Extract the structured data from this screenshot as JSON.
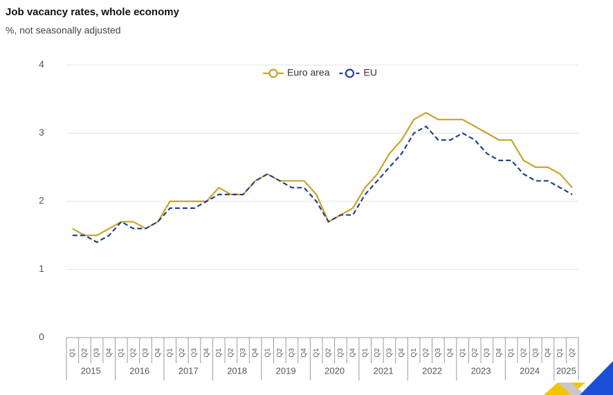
{
  "chart_data": {
    "type": "line",
    "title": "Job vacancy rates, whole economy",
    "subtitle": "%, not seasonally adjusted",
    "categories": [
      "Q1",
      "Q2",
      "Q3",
      "Q4",
      "Q1",
      "Q2",
      "Q3",
      "Q4",
      "Q1",
      "Q2",
      "Q3",
      "Q4",
      "Q1",
      "Q2",
      "Q3",
      "Q4",
      "Q1",
      "Q2",
      "Q3",
      "Q4",
      "Q1",
      "Q2",
      "Q3",
      "Q4",
      "Q1",
      "Q2",
      "Q3",
      "Q4",
      "Q1",
      "Q2",
      "Q3",
      "Q4",
      "Q1",
      "Q2",
      "Q3",
      "Q4",
      "Q1",
      "Q2",
      "Q3",
      "Q4",
      "Q1",
      "Q2"
    ],
    "groups": [
      "2015",
      "2016",
      "2017",
      "2018",
      "2019",
      "2020",
      "2021",
      "2022",
      "2023",
      "2024",
      "2025"
    ],
    "series": [
      {
        "name": "Euro area",
        "color": "#c9a22a",
        "dashed": false,
        "values": [
          1.6,
          1.5,
          1.5,
          1.6,
          1.7,
          1.7,
          1.6,
          1.7,
          2.0,
          2.0,
          2.0,
          2.0,
          2.2,
          2.1,
          2.1,
          2.3,
          2.4,
          2.3,
          2.3,
          2.3,
          2.1,
          1.7,
          1.8,
          1.9,
          2.2,
          2.4,
          2.7,
          2.9,
          3.2,
          3.3,
          3.2,
          3.2,
          3.2,
          3.1,
          3.0,
          2.9,
          2.9,
          2.6,
          2.5,
          2.5,
          2.4,
          2.2
        ]
      },
      {
        "name": "EU",
        "color": "#243f8f",
        "dashed": true,
        "values": [
          1.5,
          1.5,
          1.4,
          1.5,
          1.7,
          1.6,
          1.6,
          1.7,
          1.9,
          1.9,
          1.9,
          2.0,
          2.1,
          2.1,
          2.1,
          2.3,
          2.4,
          2.3,
          2.2,
          2.2,
          2.0,
          1.7,
          1.8,
          1.8,
          2.1,
          2.3,
          2.5,
          2.7,
          3.0,
          3.1,
          2.9,
          2.9,
          3.0,
          2.9,
          2.7,
          2.6,
          2.6,
          2.4,
          2.3,
          2.3,
          2.2,
          2.1
        ]
      }
    ],
    "ylim": [
      0,
      4
    ],
    "yticks": [
      0,
      1,
      2,
      3,
      4
    ],
    "grid": true,
    "legend": "top"
  }
}
